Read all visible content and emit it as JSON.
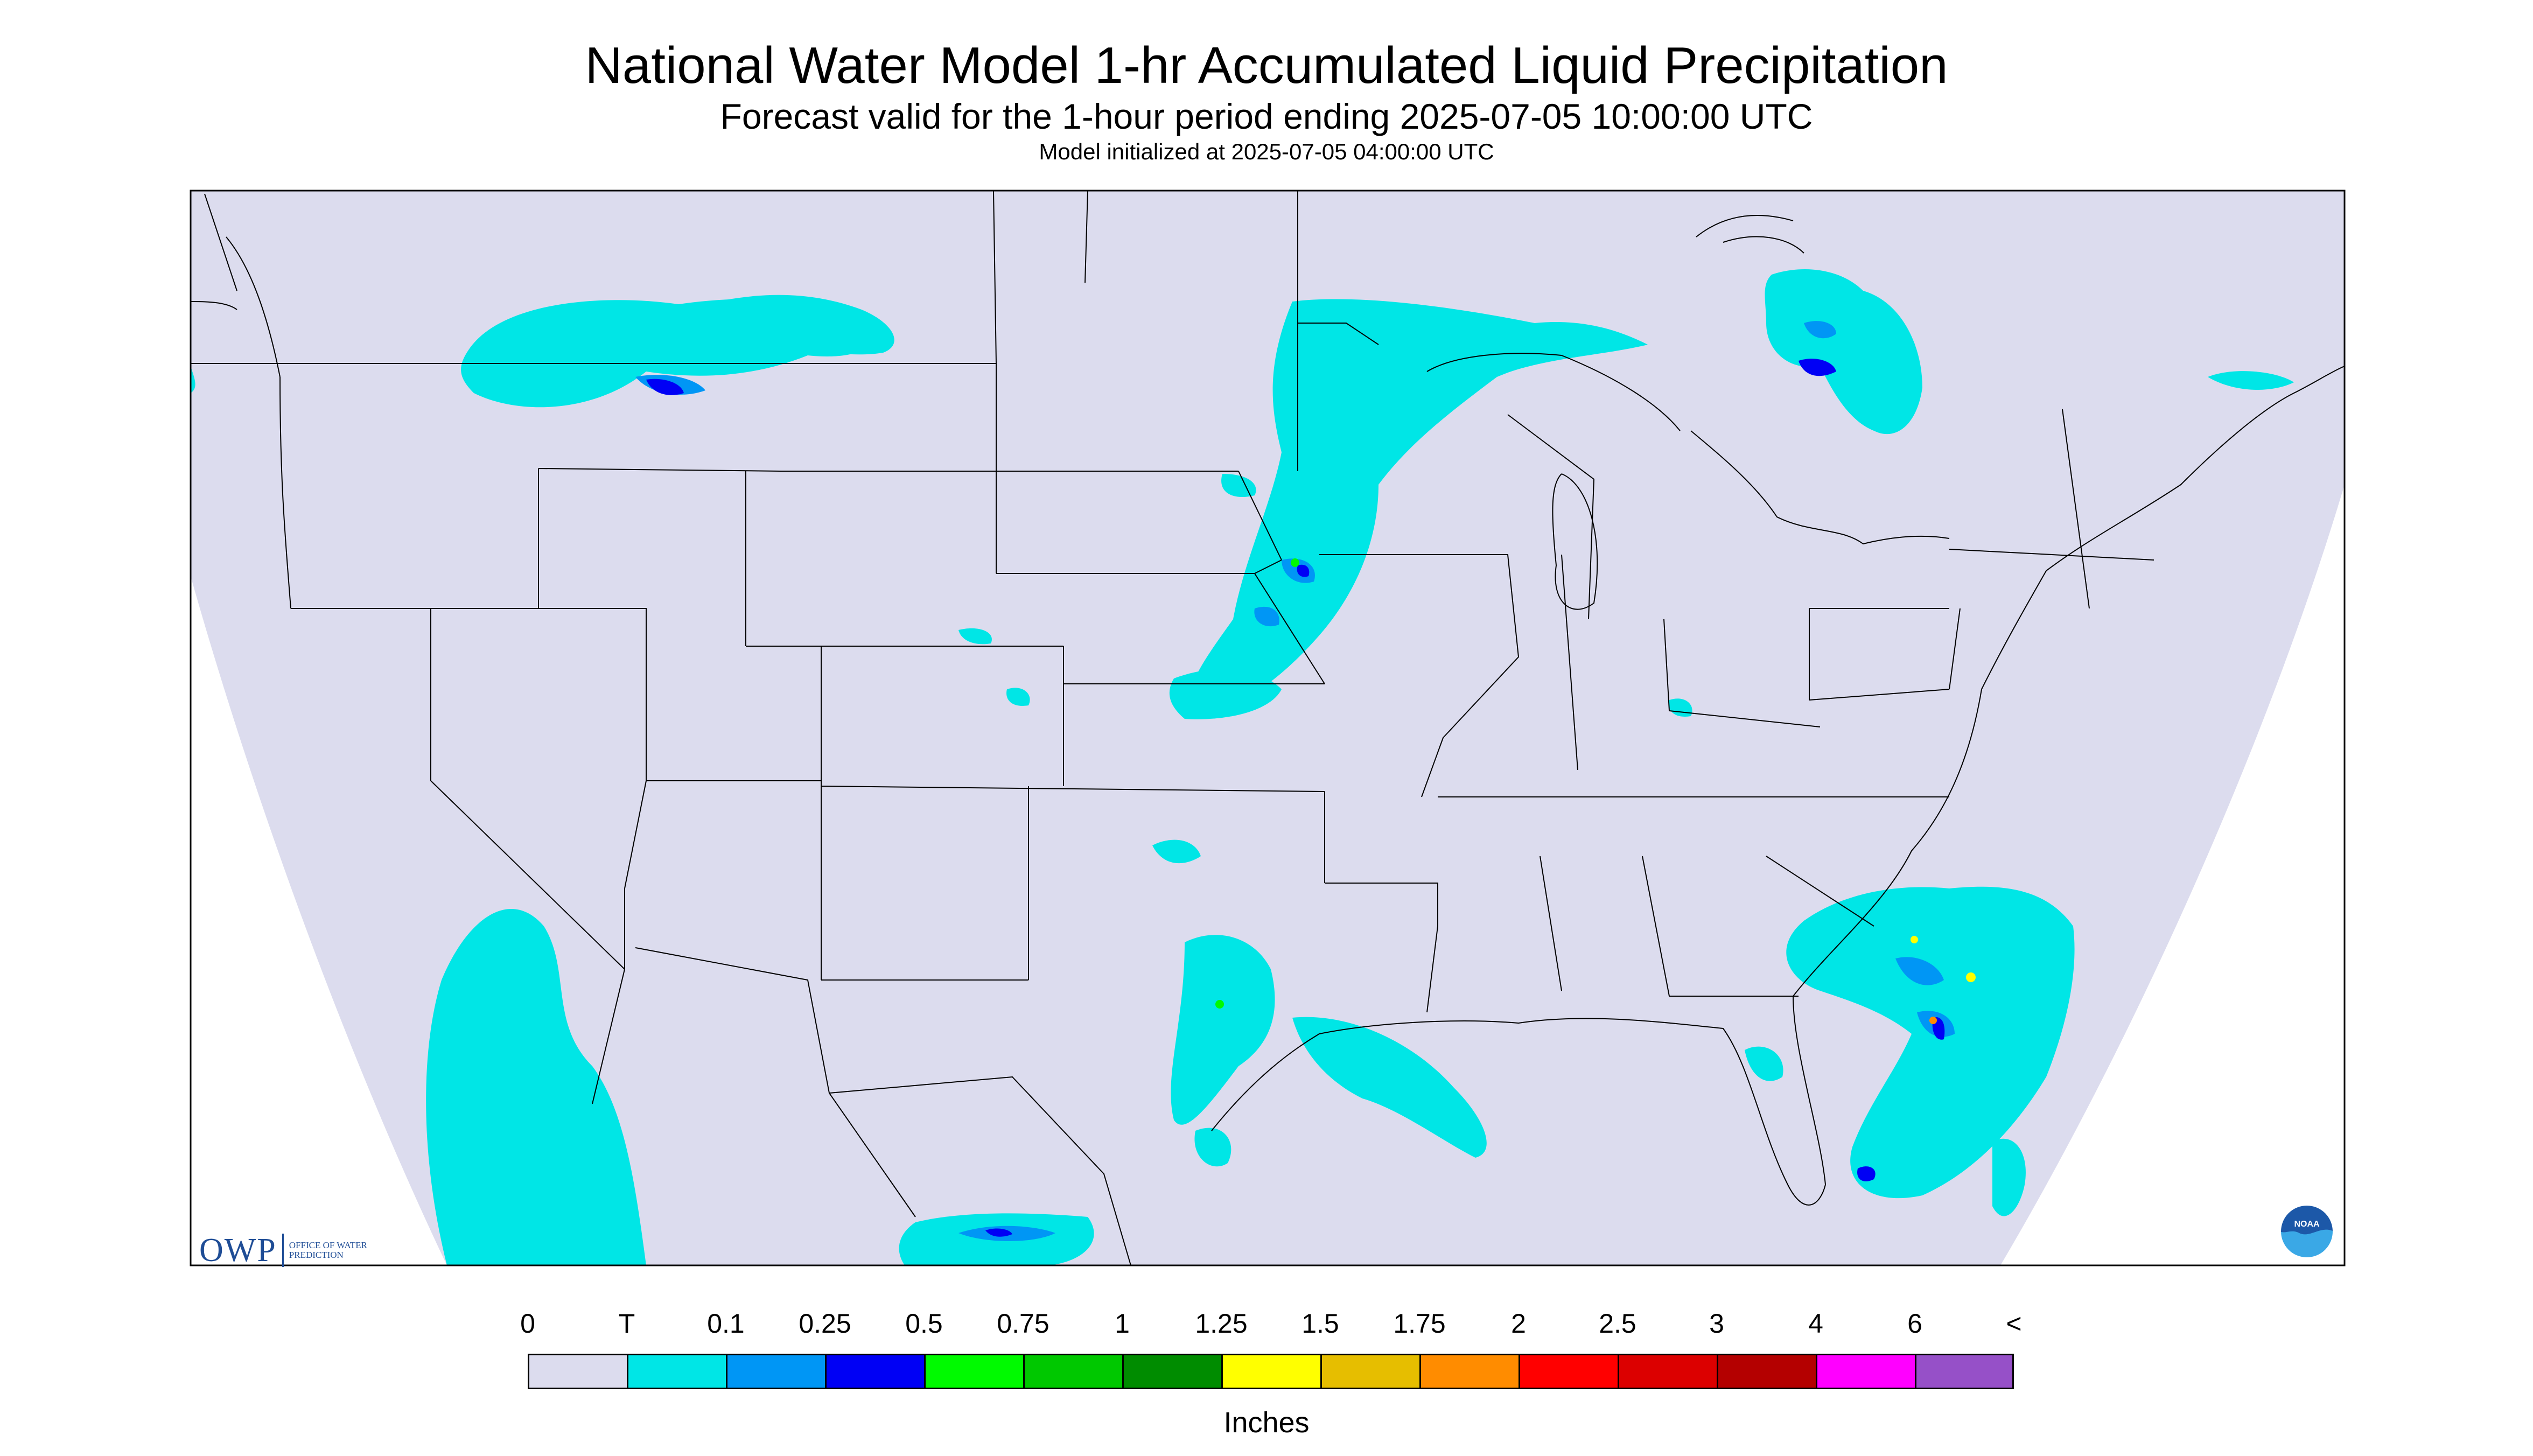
{
  "header": {
    "title": "National Water Model 1-hr Accumulated Liquid Precipitation",
    "subtitle": "Forecast valid for the 1-hour period ending 2025-07-05 10:00:00 UTC",
    "init": "Model initialized at 2025-07-05 04:00:00 UTC"
  },
  "logos": {
    "owp_mark": "OWP",
    "owp_text": "Office of Water Prediction",
    "noaa_text": "NOAA"
  },
  "map": {
    "background_color": "#dcdcee",
    "outside_color": "#ffffff",
    "boundary_color": "#000000"
  },
  "legend": {
    "unit": "Inches",
    "tick_labels": [
      "0",
      "T",
      "0.1",
      "0.25",
      "0.5",
      "0.75",
      "1",
      "1.25",
      "1.5",
      "1.75",
      "2",
      "2.5",
      "3",
      "4",
      "6",
      "<"
    ],
    "colors": [
      "#dcdcee",
      "#00e6e6",
      "#0096f5",
      "#0000f5",
      "#00fa00",
      "#00c800",
      "#008c00",
      "#ffff00",
      "#e6be00",
      "#ff8c00",
      "#ff0000",
      "#dc0000",
      "#b40000",
      "#ff00ff",
      "#9650c8"
    ]
  }
}
